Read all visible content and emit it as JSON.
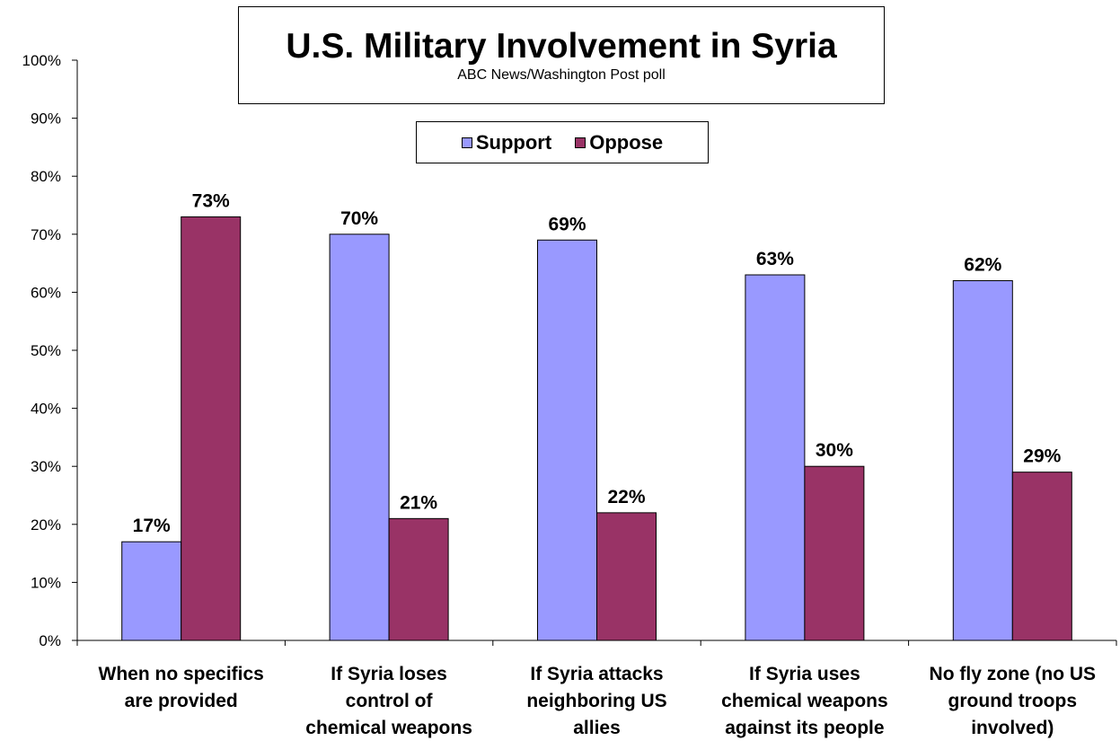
{
  "chart_data": {
    "type": "bar",
    "title": "U.S. Military Involvement in Syria",
    "subtitle": "ABC News/Washington Post poll",
    "categories": [
      [
        "When no specifics",
        "are provided"
      ],
      [
        "If Syria loses",
        "control of",
        "chemical weapons"
      ],
      [
        "If Syria attacks",
        "neighboring US",
        "allies"
      ],
      [
        "If Syria uses",
        "chemical weapons",
        "against its people"
      ],
      [
        "No fly zone (no US",
        "ground troops",
        "involved)"
      ]
    ],
    "series": [
      {
        "name": "Support",
        "color": "#9999ff",
        "values": [
          17,
          70,
          69,
          63,
          62
        ]
      },
      {
        "name": "Oppose",
        "color": "#993366",
        "values": [
          73,
          21,
          22,
          30,
          29
        ]
      }
    ],
    "ylim": [
      0,
      100
    ],
    "yticks": [
      "0%",
      "10%",
      "20%",
      "30%",
      "40%",
      "50%",
      "60%",
      "70%",
      "80%",
      "90%",
      "100%"
    ],
    "value_suffix": "%",
    "legend_position": "top-center",
    "grid": false
  }
}
